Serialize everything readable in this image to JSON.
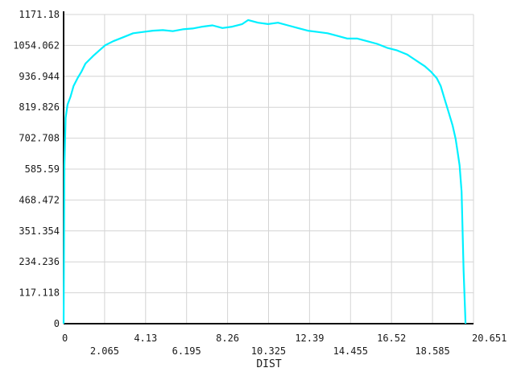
{
  "chart_data": {
    "type": "line",
    "title": "",
    "xlabel": "DIST",
    "ylabel": "",
    "xlim": [
      0,
      20.651
    ],
    "ylim": [
      0,
      1171.18
    ],
    "grid": true,
    "legend": "none",
    "x_ticks_upper": [
      "0",
      "4.13",
      "8.26",
      "12.39",
      "16.52",
      "20.651"
    ],
    "x_ticks_upper_values": [
      0,
      4.13,
      8.26,
      12.39,
      16.52,
      20.651
    ],
    "x_ticks_lower": [
      "2.065",
      "6.195",
      "10.325",
      "14.455",
      "18.585"
    ],
    "x_ticks_lower_values": [
      2.065,
      6.195,
      10.325,
      14.455,
      18.585
    ],
    "y_ticks": [
      "0",
      "117.118",
      "234.236",
      "351.354",
      "468.472",
      "585.59",
      "702.708",
      "819.826",
      "936.944",
      "1054.062",
      "1171.18"
    ],
    "y_ticks_values": [
      0,
      117.118,
      234.236,
      351.354,
      468.472,
      585.59,
      702.708,
      819.826,
      936.944,
      1054.062,
      1171.18
    ],
    "series": [
      {
        "color": "#00f0ff",
        "x": [
          0,
          0.04,
          0.1,
          0.2,
          0.35,
          0.5,
          0.7,
          0.9,
          1.1,
          1.3,
          1.5,
          1.8,
          2.1,
          2.5,
          3.0,
          3.5,
          4.0,
          4.5,
          5.0,
          5.5,
          6.0,
          6.5,
          7.0,
          7.5,
          8.0,
          8.5,
          9.0,
          9.3,
          9.8,
          10.3,
          10.8,
          11.3,
          11.8,
          12.3,
          12.8,
          13.3,
          13.8,
          14.3,
          14.8,
          15.3,
          15.8,
          16.3,
          16.8,
          17.3,
          17.6,
          17.9,
          18.2,
          18.5,
          18.8,
          19.0,
          19.2,
          19.4,
          19.6,
          19.75,
          19.85,
          19.95,
          20.05,
          20.15,
          20.25
        ],
        "y": [
          0,
          600,
          780,
          830,
          860,
          900,
          930,
          955,
          985,
          1000,
          1015,
          1035,
          1055,
          1070,
          1085,
          1100,
          1105,
          1110,
          1112,
          1108,
          1115,
          1118,
          1125,
          1130,
          1120,
          1125,
          1135,
          1150,
          1140,
          1135,
          1140,
          1130,
          1120,
          1110,
          1105,
          1100,
          1090,
          1080,
          1080,
          1070,
          1060,
          1045,
          1035,
          1020,
          1005,
          990,
          975,
          955,
          930,
          900,
          850,
          800,
          750,
          700,
          650,
          600,
          500,
          200,
          0
        ]
      }
    ]
  }
}
